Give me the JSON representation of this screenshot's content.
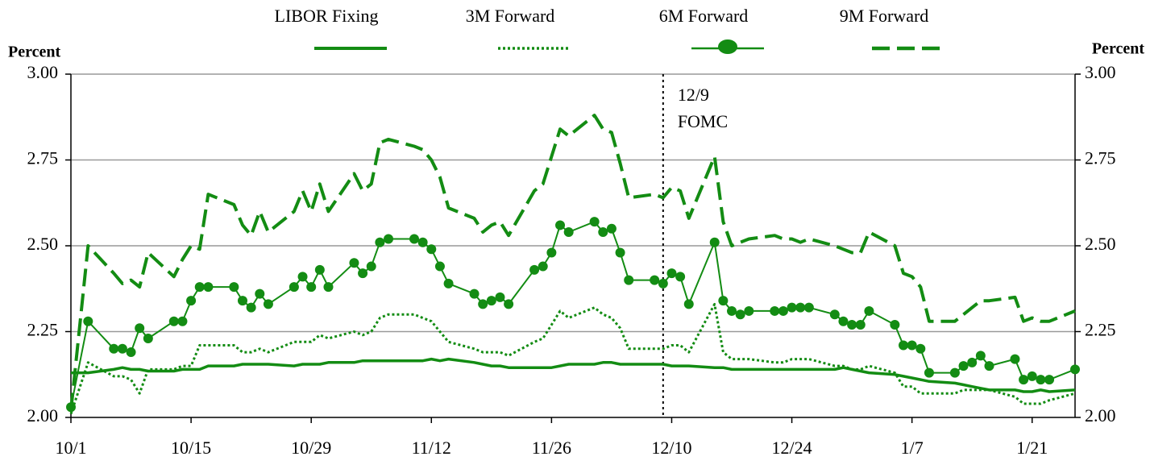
{
  "chart_data": {
    "type": "line",
    "y_label": "Percent",
    "y2_label": "Percent",
    "x": [
      "10/1",
      "10/3",
      "10/6",
      "10/7",
      "10/8",
      "10/9",
      "10/10",
      "10/13",
      "10/14",
      "10/15",
      "10/16",
      "10/17",
      "10/20",
      "10/21",
      "10/22",
      "10/23",
      "10/24",
      "10/27",
      "10/28",
      "10/29",
      "10/30",
      "10/31",
      "11/3",
      "11/4",
      "11/5",
      "11/6",
      "11/7",
      "11/10",
      "11/11",
      "11/12",
      "11/13",
      "11/14",
      "11/17",
      "11/18",
      "11/19",
      "11/20",
      "11/21",
      "11/24",
      "11/25",
      "11/26",
      "11/27",
      "11/28",
      "12/1",
      "12/2",
      "12/3",
      "12/4",
      "12/5",
      "12/8",
      "12/9",
      "12/10",
      "12/11",
      "12/12",
      "12/15",
      "12/16",
      "12/17",
      "12/18",
      "12/19",
      "12/22",
      "12/23",
      "12/24",
      "12/25",
      "12/26",
      "12/29",
      "12/30",
      "12/31",
      "1/1",
      "1/2",
      "1/5",
      "1/6",
      "1/7",
      "1/8",
      "1/9",
      "1/12",
      "1/13",
      "1/14",
      "1/15",
      "1/16",
      "1/19",
      "1/20",
      "1/21",
      "1/22",
      "1/23",
      "1/26"
    ],
    "xlim": [
      "10/1",
      "1/26"
    ],
    "xticks": [
      "10/1",
      "10/15",
      "10/29",
      "11/12",
      "11/26",
      "12/10",
      "12/24",
      "1/7",
      "1/21"
    ],
    "ylim": [
      2,
      3
    ],
    "yticks": [
      {
        "value": 2,
        "label": "2.00"
      },
      {
        "value": 2.25,
        "label": "2.25"
      },
      {
        "value": 2.5,
        "label": "2.50"
      },
      {
        "value": 2.75,
        "label": "2.75"
      },
      {
        "value": 3,
        "label": "3.00"
      }
    ],
    "y2lim": [
      2,
      3
    ],
    "y2ticks": [
      {
        "value": 2,
        "label": "2.00"
      },
      {
        "value": 2.25,
        "label": "2.25"
      },
      {
        "value": 2.5,
        "label": "2.50"
      },
      {
        "value": 2.75,
        "label": "2.75"
      },
      {
        "value": 3,
        "label": "3.00"
      }
    ],
    "grid": true,
    "annotation": {
      "x": "12/9",
      "lines": [
        "12/9",
        "FOMC"
      ]
    },
    "series": [
      {
        "name": "LIBOR Fixing",
        "color": "#138c13",
        "style": "solid",
        "values": [
          2.13,
          2.13,
          2.14,
          2.145,
          2.14,
          2.14,
          2.135,
          2.135,
          2.14,
          2.14,
          2.14,
          2.15,
          2.15,
          2.155,
          2.155,
          2.155,
          2.155,
          2.15,
          2.155,
          2.155,
          2.155,
          2.16,
          2.16,
          2.165,
          2.165,
          2.165,
          2.165,
          2.165,
          2.165,
          2.17,
          2.165,
          2.17,
          2.16,
          2.155,
          2.15,
          2.15,
          2.145,
          2.145,
          2.145,
          2.145,
          2.15,
          2.155,
          2.155,
          2.16,
          2.16,
          2.155,
          2.155,
          2.155,
          2.155,
          2.15,
          2.15,
          2.15,
          2.145,
          2.145,
          2.14,
          2.14,
          2.14,
          2.14,
          2.14,
          2.14,
          2.14,
          2.14,
          2.14,
          2.145,
          2.14,
          2.135,
          2.13,
          2.125,
          2.12,
          2.115,
          2.11,
          2.105,
          2.1,
          2.095,
          2.09,
          2.085,
          2.08,
          2.08,
          2.075,
          2.075,
          2.08,
          2.075,
          2.08
        ]
      },
      {
        "name": "3M Forward",
        "color": "#138c13",
        "style": "dotted",
        "values": [
          2.01,
          2.16,
          2.12,
          2.12,
          2.11,
          2.07,
          2.14,
          2.14,
          2.15,
          2.15,
          2.21,
          2.21,
          2.21,
          2.19,
          2.19,
          2.2,
          2.19,
          2.22,
          2.22,
          2.22,
          2.24,
          2.23,
          2.25,
          2.24,
          2.25,
          2.29,
          2.3,
          2.3,
          2.29,
          2.28,
          2.25,
          2.22,
          2.2,
          2.19,
          2.19,
          2.19,
          2.18,
          2.22,
          2.23,
          2.27,
          2.31,
          2.29,
          2.32,
          2.3,
          2.29,
          2.26,
          2.2,
          2.2,
          2.2,
          2.21,
          2.21,
          2.19,
          2.33,
          2.19,
          2.17,
          2.17,
          2.17,
          2.16,
          2.16,
          2.17,
          2.17,
          2.17,
          2.15,
          2.15,
          2.14,
          2.14,
          2.15,
          2.13,
          2.09,
          2.09,
          2.07,
          2.07,
          2.07,
          2.08,
          2.08,
          2.08,
          2.08,
          2.06,
          2.04,
          2.04,
          2.04,
          2.05,
          2.07
        ]
      },
      {
        "name": "6M Forward",
        "color": "#138c13",
        "style": "marker",
        "values": [
          2.03,
          2.28,
          2.2,
          2.2,
          2.19,
          2.26,
          2.23,
          2.28,
          2.28,
          2.34,
          2.38,
          2.38,
          2.38,
          2.34,
          2.32,
          2.36,
          2.33,
          2.38,
          2.41,
          2.38,
          2.43,
          2.38,
          2.45,
          2.42,
          2.44,
          2.51,
          2.52,
          2.52,
          2.51,
          2.49,
          2.44,
          2.39,
          2.36,
          2.33,
          2.34,
          2.35,
          2.33,
          2.43,
          2.44,
          2.48,
          2.56,
          2.54,
          2.57,
          2.54,
          2.55,
          2.48,
          2.4,
          2.4,
          2.39,
          2.42,
          2.41,
          2.33,
          2.51,
          2.34,
          2.31,
          2.3,
          2.31,
          2.31,
          2.31,
          2.32,
          2.32,
          2.32,
          2.3,
          2.28,
          2.27,
          2.27,
          2.31,
          2.27,
          2.21,
          2.21,
          2.2,
          2.13,
          2.13,
          2.15,
          2.16,
          2.18,
          2.15,
          2.17,
          2.11,
          2.12,
          2.11,
          2.11,
          2.14
        ]
      },
      {
        "name": "9M Forward",
        "color": "#138c13",
        "style": "dashed",
        "values": [
          2.02,
          2.5,
          2.42,
          2.39,
          2.4,
          2.38,
          2.48,
          2.41,
          2.46,
          2.5,
          2.49,
          2.65,
          2.62,
          2.56,
          2.53,
          2.6,
          2.54,
          2.6,
          2.66,
          2.6,
          2.68,
          2.6,
          2.71,
          2.66,
          2.68,
          2.8,
          2.81,
          2.79,
          2.78,
          2.75,
          2.7,
          2.61,
          2.58,
          2.54,
          2.56,
          2.57,
          2.53,
          2.66,
          2.68,
          2.76,
          2.84,
          2.82,
          2.88,
          2.84,
          2.83,
          2.74,
          2.64,
          2.65,
          2.64,
          2.67,
          2.66,
          2.58,
          2.76,
          2.57,
          2.5,
          2.51,
          2.52,
          2.53,
          2.52,
          2.52,
          2.51,
          2.52,
          2.5,
          2.49,
          2.48,
          2.48,
          2.54,
          2.5,
          2.42,
          2.41,
          2.38,
          2.28,
          2.28,
          2.3,
          2.32,
          2.34,
          2.34,
          2.35,
          2.28,
          2.29,
          2.28,
          2.28,
          2.31
        ]
      }
    ]
  }
}
